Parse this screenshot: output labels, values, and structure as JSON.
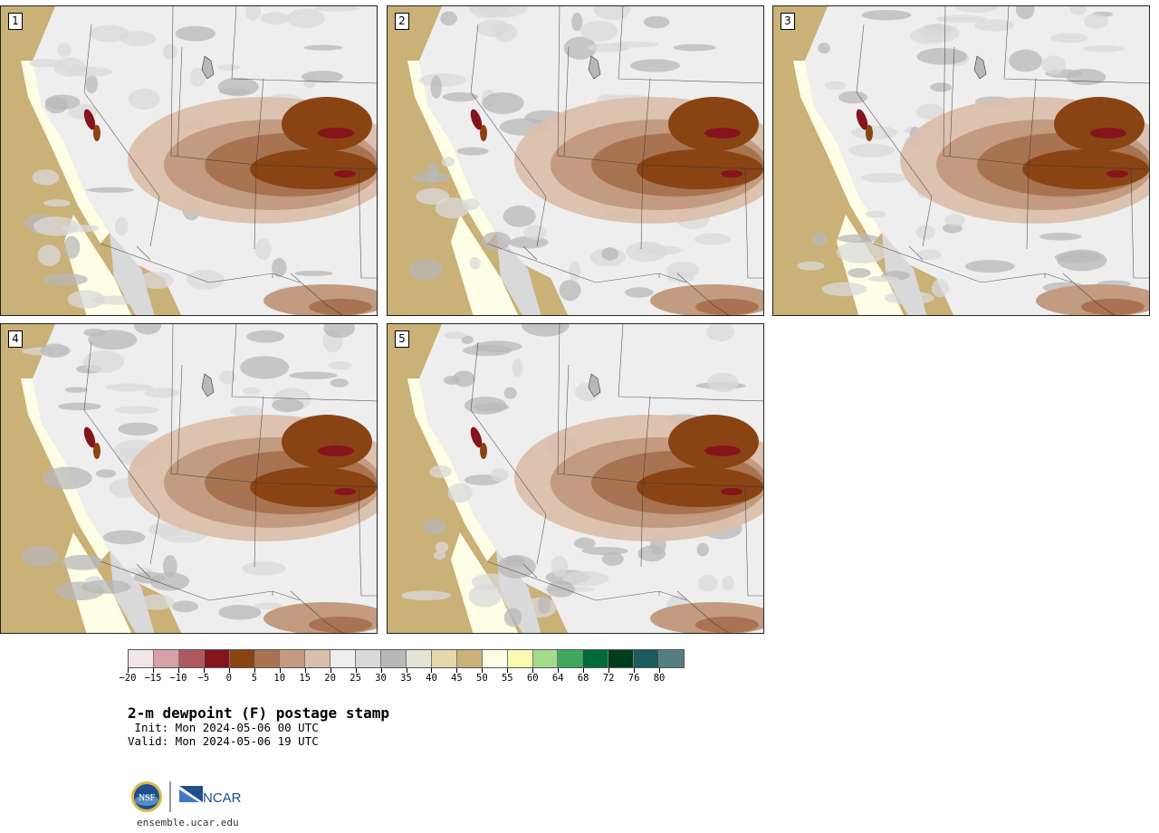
{
  "title": "2-m dewpoint (F) postage stamp",
  "init_line": " Init: Mon 2024-05-06 00 UTC",
  "valid_line": "Valid: Mon 2024-05-06 19 UTC",
  "url": "ensemble.ucar.edu",
  "logos": {
    "nsf": "NSF",
    "ncar": "NCAR"
  },
  "members": [
    {
      "label": "1"
    },
    {
      "label": "2"
    },
    {
      "label": "3"
    },
    {
      "label": "4"
    },
    {
      "label": "5"
    }
  ],
  "colorbar": {
    "colors": [
      "#f3e4e6",
      "#d5a1a7",
      "#b0585f",
      "#85141c",
      "#8a4313",
      "#a87351",
      "#c29b80",
      "#dbbfac",
      "#eeeeee",
      "#d9d9d9",
      "#b8b8b8",
      "#e6e3d5",
      "#e6d8ac",
      "#c9b177",
      "#fefde6",
      "#f7fab0",
      "#a4da8c",
      "#3fa85e",
      "#006b38",
      "#003d1f",
      "#1b5a5f",
      "#547e80"
    ],
    "tick_labels": [
      "−20",
      "−15",
      "−10",
      "−5",
      "0",
      "5",
      "10",
      "15",
      "20",
      "25",
      "30",
      "35",
      "40",
      "45",
      "50",
      "55",
      "60",
      "64",
      "68",
      "72",
      "76",
      "80"
    ]
  },
  "map_colors": {
    "ocean": "#c9b177",
    "coast": "#fefde6",
    "gray_light": "#eeeeee",
    "gray_mid": "#d9d9d9",
    "gray_dark": "#b8b8b8",
    "tan_light": "#dbbfac",
    "tan_mid": "#c29b80",
    "brown": "#a87351",
    "brown_dark": "#8a4313",
    "maroon": "#85141c"
  }
}
